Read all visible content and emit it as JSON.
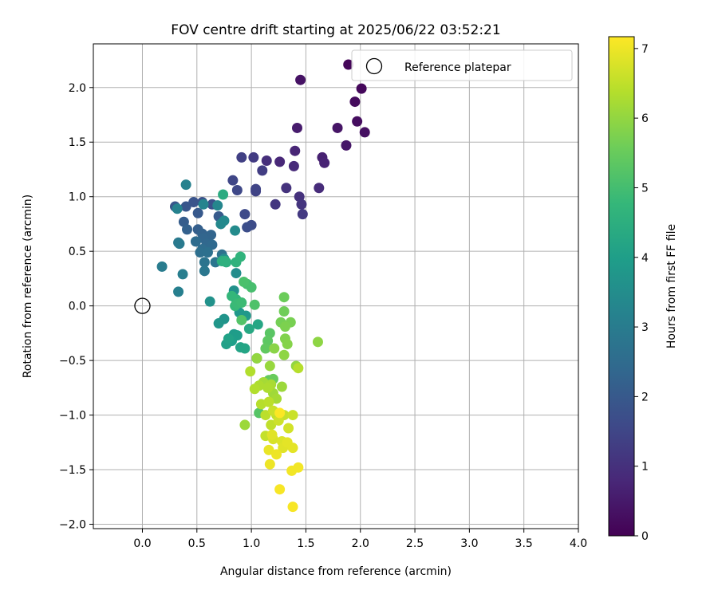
{
  "chart_data": {
    "type": "scatter",
    "title": "FOV centre drift starting at 2025/06/22 03:52:21",
    "xlabel": "Angular distance from reference (arcmin)",
    "ylabel": "Rotation from reference (arcmin)",
    "xlim": [
      -0.45,
      4.0
    ],
    "ylim": [
      -2.04,
      2.4
    ],
    "xticks": [
      "0.0",
      "0.5",
      "1.0",
      "1.5",
      "2.0",
      "2.5",
      "3.0",
      "3.5",
      "4.0"
    ],
    "xtick_values": [
      0,
      0.5,
      1.0,
      1.5,
      2.0,
      2.5,
      3.0,
      3.5,
      4.0
    ],
    "yticks": [
      "−2.0",
      "−1.5",
      "−1.0",
      "−0.5",
      "0.0",
      "0.5",
      "1.0",
      "1.5",
      "2.0"
    ],
    "ytick_values": [
      -2.0,
      -1.5,
      -1.0,
      -0.5,
      0.0,
      0.5,
      1.0,
      1.5,
      2.0
    ],
    "grid": true,
    "legend": {
      "placement": "top-right",
      "entries": [
        "Reference platepar"
      ]
    },
    "reference_point": {
      "x": 0,
      "y": 0
    },
    "colorbar": {
      "label": "Hours from first FF file",
      "colormap": "viridis",
      "range": [
        0,
        7.17
      ],
      "ticks": [
        "0",
        "1",
        "2",
        "3",
        "4",
        "5",
        "6",
        "7"
      ],
      "tick_values": [
        0,
        1,
        2,
        3,
        4,
        5,
        6,
        7
      ]
    },
    "points": [
      [
        1.89,
        2.21,
        0.1
      ],
      [
        2.01,
        1.99,
        0.15
      ],
      [
        1.95,
        1.87,
        0.2
      ],
      [
        1.97,
        1.69,
        0.25
      ],
      [
        2.04,
        1.59,
        0.3
      ],
      [
        1.45,
        2.07,
        0.35
      ],
      [
        1.79,
        1.63,
        0.4
      ],
      [
        1.87,
        1.47,
        0.45
      ],
      [
        1.42,
        1.63,
        0.55
      ],
      [
        1.65,
        1.36,
        0.65
      ],
      [
        1.67,
        1.31,
        0.7
      ],
      [
        1.4,
        1.42,
        0.75
      ],
      [
        1.26,
        1.32,
        0.8
      ],
      [
        1.39,
        1.28,
        0.85
      ],
      [
        1.62,
        1.08,
        0.9
      ],
      [
        1.14,
        1.33,
        0.95
      ],
      [
        1.44,
        1.0,
        1.0
      ],
      [
        1.32,
        1.08,
        1.05
      ],
      [
        1.46,
        0.93,
        1.1
      ],
      [
        1.22,
        0.93,
        1.15
      ],
      [
        1.47,
        0.84,
        1.2
      ],
      [
        1.02,
        1.36,
        1.25
      ],
      [
        1.1,
        1.24,
        1.3
      ],
      [
        0.91,
        1.36,
        1.35
      ],
      [
        1.04,
        1.05,
        1.4
      ],
      [
        1.04,
        1.07,
        1.45
      ],
      [
        0.83,
        1.15,
        1.5
      ],
      [
        0.87,
        1.06,
        1.55
      ],
      [
        0.94,
        0.84,
        1.6
      ],
      [
        1.0,
        0.74,
        1.65
      ],
      [
        0.96,
        0.72,
        1.7
      ],
      [
        0.64,
        0.93,
        1.75
      ],
      [
        0.55,
        0.95,
        1.8
      ],
      [
        0.47,
        0.95,
        1.85
      ],
      [
        0.4,
        0.91,
        1.9
      ],
      [
        0.3,
        0.91,
        1.95
      ],
      [
        0.51,
        0.85,
        2.0
      ],
      [
        0.7,
        0.82,
        2.05
      ],
      [
        0.38,
        0.77,
        2.1
      ],
      [
        0.51,
        0.7,
        2.15
      ],
      [
        0.41,
        0.7,
        2.2
      ],
      [
        0.55,
        0.66,
        2.25
      ],
      [
        0.63,
        0.65,
        2.3
      ],
      [
        0.56,
        0.62,
        2.35
      ],
      [
        0.59,
        0.57,
        2.4
      ],
      [
        0.64,
        0.56,
        2.45
      ],
      [
        0.49,
        0.59,
        2.5
      ],
      [
        0.55,
        0.52,
        2.55
      ],
      [
        0.53,
        0.49,
        2.6
      ],
      [
        0.6,
        0.49,
        2.65
      ],
      [
        0.73,
        0.47,
        2.7
      ],
      [
        0.57,
        0.4,
        2.75
      ],
      [
        0.67,
        0.4,
        2.8
      ],
      [
        0.57,
        0.32,
        2.85
      ],
      [
        0.33,
        0.58,
        2.9
      ],
      [
        0.34,
        0.57,
        2.95
      ],
      [
        0.18,
        0.36,
        3.0
      ],
      [
        0.37,
        0.29,
        3.05
      ],
      [
        0.33,
        0.13,
        3.1
      ],
      [
        0.4,
        1.11,
        3.15
      ],
      [
        0.32,
        0.89,
        3.2
      ],
      [
        0.56,
        0.93,
        3.25
      ],
      [
        0.69,
        0.92,
        3.3
      ],
      [
        0.72,
        0.75,
        3.35
      ],
      [
        0.75,
        0.78,
        3.4
      ],
      [
        0.85,
        0.69,
        3.45
      ],
      [
        0.86,
        0.3,
        3.5
      ],
      [
        0.75,
        0.43,
        3.55
      ],
      [
        0.84,
        0.14,
        3.6
      ],
      [
        0.62,
        0.04,
        3.65
      ],
      [
        0.75,
        -0.12,
        3.7
      ],
      [
        0.7,
        -0.16,
        3.75
      ],
      [
        0.89,
        -0.06,
        3.8
      ],
      [
        0.95,
        -0.09,
        3.85
      ],
      [
        0.84,
        -0.26,
        3.9
      ],
      [
        0.87,
        -0.27,
        3.95
      ],
      [
        0.82,
        -0.32,
        4.0
      ],
      [
        0.77,
        -0.35,
        4.05
      ],
      [
        0.79,
        -0.3,
        4.1
      ],
      [
        0.9,
        -0.38,
        4.15
      ],
      [
        0.94,
        -0.39,
        4.2
      ],
      [
        1.06,
        -0.17,
        4.25
      ],
      [
        0.98,
        -0.21,
        4.3
      ],
      [
        1.05,
        -0.48,
        4.35
      ],
      [
        0.74,
        1.02,
        4.4
      ],
      [
        0.77,
        0.4,
        4.45
      ],
      [
        0.73,
        0.41,
        4.5
      ],
      [
        0.76,
        0.41,
        4.55
      ],
      [
        0.86,
        0.4,
        4.6
      ],
      [
        0.9,
        0.45,
        4.65
      ],
      [
        0.86,
        0.06,
        4.7
      ],
      [
        0.82,
        0.09,
        4.75
      ],
      [
        0.85,
        0.0,
        4.8
      ],
      [
        0.87,
        0.02,
        4.85
      ],
      [
        0.91,
        0.03,
        4.9
      ],
      [
        0.96,
        0.2,
        5.0
      ],
      [
        1.0,
        0.17,
        5.05
      ],
      [
        0.93,
        0.22,
        5.1
      ],
      [
        1.03,
        0.01,
        5.15
      ],
      [
        0.91,
        -0.13,
        5.2
      ],
      [
        1.07,
        -0.98,
        5.25
      ],
      [
        1.17,
        -0.25,
        5.3
      ],
      [
        1.15,
        -0.32,
        5.35
      ],
      [
        1.13,
        -0.39,
        5.4
      ],
      [
        1.16,
        -0.68,
        5.45
      ],
      [
        1.2,
        -0.67,
        5.5
      ],
      [
        1.3,
        0.08,
        5.55
      ],
      [
        1.3,
        -0.05,
        5.6
      ],
      [
        1.27,
        -0.15,
        5.65
      ],
      [
        1.36,
        -0.15,
        5.7
      ],
      [
        1.31,
        -0.19,
        5.75
      ],
      [
        1.31,
        -0.3,
        5.8
      ],
      [
        1.33,
        -0.35,
        5.85
      ],
      [
        1.21,
        -0.39,
        5.9
      ],
      [
        1.3,
        -0.45,
        5.95
      ],
      [
        1.61,
        -0.33,
        5.95
      ],
      [
        1.41,
        -0.55,
        6.0
      ],
      [
        1.05,
        -0.48,
        6.0
      ],
      [
        1.17,
        -0.55,
        6.05
      ],
      [
        0.94,
        -1.09,
        6.1
      ],
      [
        1.28,
        -0.74,
        6.1
      ],
      [
        1.2,
        -0.8,
        6.15
      ],
      [
        1.23,
        -0.85,
        6.2
      ],
      [
        1.11,
        -0.7,
        6.2
      ],
      [
        1.18,
        -0.72,
        6.25
      ],
      [
        1.15,
        -0.75,
        6.3
      ],
      [
        1.07,
        -0.73,
        6.3
      ],
      [
        1.03,
        -0.76,
        6.35
      ],
      [
        0.99,
        -0.6,
        6.35
      ],
      [
        1.43,
        -0.57,
        6.4
      ],
      [
        1.09,
        -0.9,
        6.4
      ],
      [
        1.16,
        -0.88,
        6.45
      ],
      [
        1.13,
        -1.0,
        6.45
      ],
      [
        1.18,
        -1.09,
        6.5
      ],
      [
        1.23,
        -1.0,
        6.5
      ],
      [
        1.13,
        -1.19,
        6.55
      ],
      [
        1.3,
        -1.0,
        6.55
      ],
      [
        1.38,
        -1.0,
        6.6
      ],
      [
        1.2,
        -0.96,
        6.6
      ],
      [
        1.25,
        -1.05,
        6.65
      ],
      [
        1.34,
        -1.12,
        6.7
      ],
      [
        1.2,
        -1.22,
        6.75
      ],
      [
        1.28,
        -1.24,
        6.8
      ],
      [
        1.29,
        -1.3,
        6.85
      ],
      [
        1.19,
        -1.18,
        6.85
      ],
      [
        1.33,
        -1.25,
        6.9
      ],
      [
        1.38,
        -1.3,
        6.9
      ],
      [
        1.16,
        -1.32,
        6.95
      ],
      [
        1.23,
        -1.36,
        7.0
      ],
      [
        1.17,
        -1.45,
        7.0
      ],
      [
        1.37,
        -1.51,
        7.05
      ],
      [
        1.43,
        -1.48,
        7.05
      ],
      [
        1.26,
        -1.68,
        7.1
      ],
      [
        1.38,
        -1.84,
        7.1
      ],
      [
        1.26,
        -0.98,
        7.15
      ]
    ]
  }
}
